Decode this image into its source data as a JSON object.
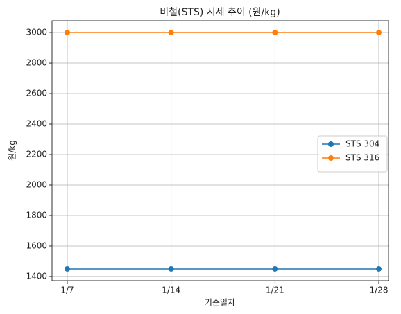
{
  "chart_data": {
    "type": "line",
    "title": "비철(STS) 시세 추이 (원/kg)",
    "x_label": "기준일자",
    "y_label": "원/kg",
    "categories": [
      "1/7",
      "1/14",
      "1/21",
      "1/28"
    ],
    "series": [
      {
        "name": "STS 304",
        "color": "#1f77b4",
        "values": [
          1450,
          1450,
          1450,
          1450
        ]
      },
      {
        "name": "STS 316",
        "color": "#ff7f0e",
        "values": [
          3000,
          3000,
          3000,
          3000
        ]
      }
    ],
    "ylim": [
      1372.5,
      3077.5
    ],
    "yticks": [
      1400,
      1600,
      1800,
      2000,
      2200,
      2400,
      2600,
      2800,
      3000
    ],
    "grid": true,
    "legend": "right"
  }
}
